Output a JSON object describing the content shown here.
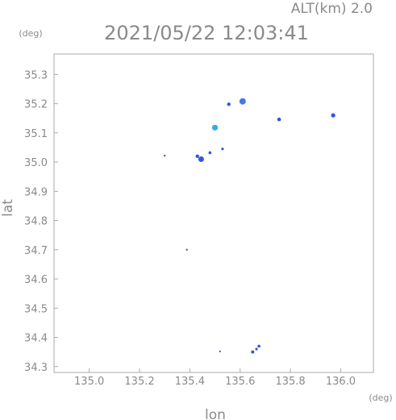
{
  "header": {
    "altitude_label": "ALT(km) 2.0",
    "timestamp": "2021/05/22 12:03:41"
  },
  "chart_data": {
    "type": "scatter",
    "title": "2021/05/22 12:03:41",
    "xlabel": "lon",
    "ylabel": "lat",
    "x_unit": "(deg)",
    "y_unit": "(deg)",
    "xlim": [
      134.86,
      136.13
    ],
    "ylim": [
      34.28,
      35.37
    ],
    "x_ticks": [
      "135.0",
      "135.2",
      "135.4",
      "135.6",
      "135.8",
      "136.0"
    ],
    "y_ticks": [
      "34.3",
      "34.4",
      "34.5",
      "34.6",
      "34.7",
      "34.8",
      "34.9",
      "35.0",
      "35.1",
      "35.2",
      "35.3"
    ],
    "grid": false,
    "colors": {
      "blue": "#3355e0",
      "mid": "#4477ee",
      "cyan": "#33aaee"
    },
    "points": [
      {
        "lon": 135.61,
        "lat": 35.208,
        "size": 4.0,
        "color": "mid"
      },
      {
        "lon": 135.555,
        "lat": 35.198,
        "size": 2.2,
        "color": "blue"
      },
      {
        "lon": 135.5,
        "lat": 35.118,
        "size": 3.6,
        "color": "cyan"
      },
      {
        "lon": 135.755,
        "lat": 35.146,
        "size": 2.3,
        "color": "blue"
      },
      {
        "lon": 135.97,
        "lat": 35.16,
        "size": 2.6,
        "color": "blue"
      },
      {
        "lon": 135.445,
        "lat": 35.01,
        "size": 3.5,
        "color": "blue"
      },
      {
        "lon": 135.43,
        "lat": 35.02,
        "size": 2.2,
        "color": "blue"
      },
      {
        "lon": 135.48,
        "lat": 35.032,
        "size": 1.8,
        "color": "blue"
      },
      {
        "lon": 135.53,
        "lat": 35.045,
        "size": 1.6,
        "color": "blue"
      },
      {
        "lon": 135.3,
        "lat": 35.022,
        "size": 1.2,
        "color": "blue"
      },
      {
        "lon": 135.388,
        "lat": 34.7,
        "size": 1.2,
        "color": "blue"
      },
      {
        "lon": 135.52,
        "lat": 34.352,
        "size": 1.1,
        "color": "blue"
      },
      {
        "lon": 135.65,
        "lat": 34.35,
        "size": 2.0,
        "color": "blue"
      },
      {
        "lon": 135.665,
        "lat": 34.36,
        "size": 1.6,
        "color": "blue"
      },
      {
        "lon": 135.675,
        "lat": 34.37,
        "size": 1.8,
        "color": "blue"
      }
    ]
  }
}
